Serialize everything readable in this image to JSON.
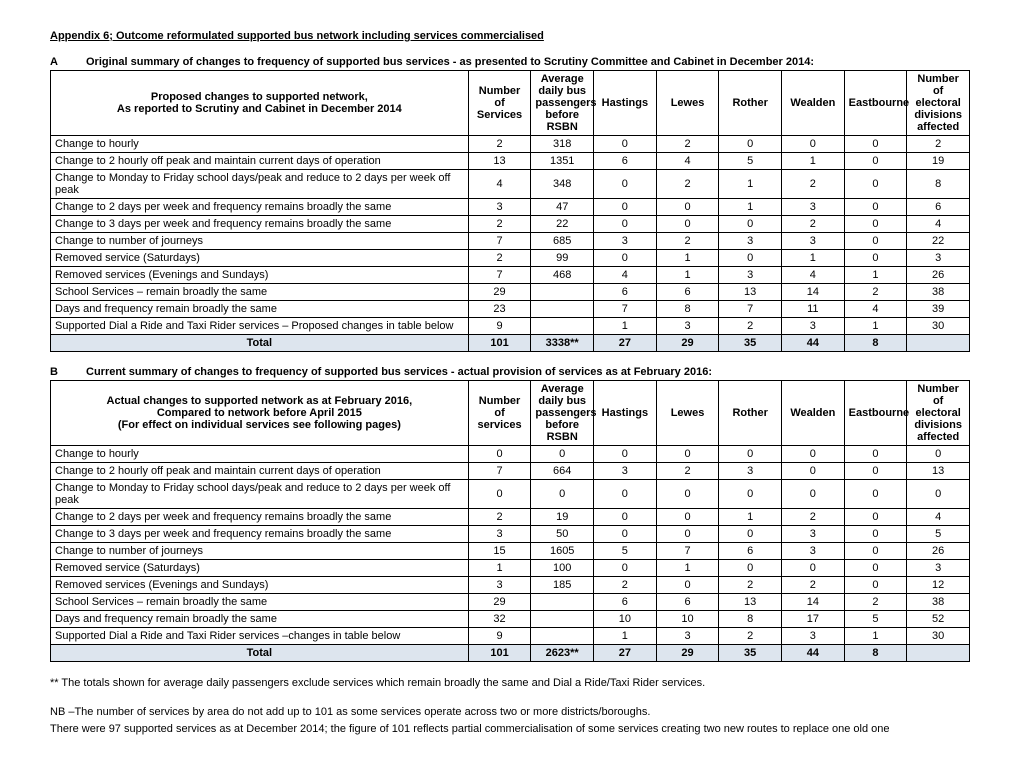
{
  "title": "Appendix 6; Outcome reformulated supported bus network including services commercialised",
  "footnote_star": "** The totals shown for average daily passengers exclude services which remain broadly the same and Dial a Ride/Taxi Rider services.",
  "footnote_nb1": "NB –The number of services by area do not add up to 101 as some services operate across two or more districts/boroughs.",
  "footnote_nb2": "There were 97 supported services as at December 2014; the figure of 101 reflects partial commercialisation of some services creating two new routes to replace one old one",
  "tableA": {
    "letter": "A",
    "heading": "Original summary of changes to frequency of supported bus services -  as presented to Scrutiny Committee and Cabinet in December 2014:",
    "header_desc_line1": "Proposed changes to supported network,",
    "header_desc_line2": "As reported to Scrutiny and Cabinet in December 2014",
    "header_services": "Number of Services",
    "header_pax": "Average daily bus passengers before RSBN",
    "header_hastings": "Hastings",
    "header_lewes": "Lewes",
    "header_rother": "Rother",
    "header_wealden": "Wealden",
    "header_eastbourne": "Eastbourne",
    "header_divisions": "Number of electoral divisions affected",
    "rows": [
      {
        "label": "Change to hourly",
        "services": "2",
        "pax": "318",
        "hastings": "0",
        "lewes": "2",
        "rother": "0",
        "wealden": "0",
        "eastbourne": "0",
        "divisions": "2"
      },
      {
        "label": "Change to 2 hourly off peak and maintain current days of operation",
        "services": "13",
        "pax": "1351",
        "hastings": "6",
        "lewes": "4",
        "rother": "5",
        "wealden": "1",
        "eastbourne": "0",
        "divisions": "19"
      },
      {
        "label": "Change to Monday to Friday school days/peak and reduce to 2 days per week off peak",
        "services": "4",
        "pax": "348",
        "hastings": "0",
        "lewes": "2",
        "rother": "1",
        "wealden": "2",
        "eastbourne": "0",
        "divisions": "8"
      },
      {
        "label": "Change to 2 days per week and frequency remains broadly the same",
        "services": "3",
        "pax": "47",
        "hastings": "0",
        "lewes": "0",
        "rother": "1",
        "wealden": "3",
        "eastbourne": "0",
        "divisions": "6"
      },
      {
        "label": "Change to 3 days per week and frequency remains broadly the same",
        "services": "2",
        "pax": "22",
        "hastings": "0",
        "lewes": "0",
        "rother": "0",
        "wealden": "2",
        "eastbourne": "0",
        "divisions": "4"
      },
      {
        "label": "Change to number of journeys",
        "services": "7",
        "pax": "685",
        "hastings": "3",
        "lewes": "2",
        "rother": "3",
        "wealden": "3",
        "eastbourne": "0",
        "divisions": "22"
      },
      {
        "label": "Removed service (Saturdays)",
        "services": "2",
        "pax": "99",
        "hastings": "0",
        "lewes": "1",
        "rother": "0",
        "wealden": "1",
        "eastbourne": "0",
        "divisions": "3"
      },
      {
        "label": "Removed services (Evenings and Sundays)",
        "services": "7",
        "pax": "468",
        "hastings": "4",
        "lewes": "1",
        "rother": "3",
        "wealden": "4",
        "eastbourne": "1",
        "divisions": "26"
      },
      {
        "label": "School Services – remain broadly the same",
        "services": "29",
        "pax": "",
        "hastings": "6",
        "lewes": "6",
        "rother": "13",
        "wealden": "14",
        "eastbourne": "2",
        "divisions": "38"
      },
      {
        "label": "Days and frequency remain broadly the same",
        "services": "23",
        "pax": "",
        "hastings": "7",
        "lewes": "8",
        "rother": "7",
        "wealden": "11",
        "eastbourne": "4",
        "divisions": "39"
      },
      {
        "label": "Supported Dial a Ride and Taxi Rider services – Proposed changes in table below",
        "services": "9",
        "pax": "",
        "hastings": "1",
        "lewes": "3",
        "rother": "2",
        "wealden": "3",
        "eastbourne": "1",
        "divisions": "30"
      }
    ],
    "total": {
      "label": "Total",
      "services": "101",
      "pax": "3338**",
      "hastings": "27",
      "lewes": "29",
      "rother": "35",
      "wealden": "44",
      "eastbourne": "8",
      "divisions": ""
    }
  },
  "tableB": {
    "letter": "B",
    "heading": "Current summary of changes to frequency of supported bus services -  actual provision of services as at February  2016:",
    "header_desc_line1": "Actual changes to supported network as at February 2016,",
    "header_desc_line2": "Compared to network before April 2015",
    "header_desc_line3": "(For effect on individual services see following pages)",
    "header_services": "Number of services",
    "header_pax": "Average daily bus passengers before RSBN",
    "header_hastings": "Hastings",
    "header_lewes": "Lewes",
    "header_rother": "Rother",
    "header_wealden": "Wealden",
    "header_eastbourne": "Eastbourne",
    "header_divisions": "Number of electoral divisions affected",
    "rows": [
      {
        "label": "Change to hourly",
        "services": "0",
        "pax": "0",
        "hastings": "0",
        "lewes": "0",
        "rother": "0",
        "wealden": "0",
        "eastbourne": "0",
        "divisions": "0"
      },
      {
        "label": "Change to 2 hourly off peak and maintain current days of operation",
        "services": "7",
        "pax": "664",
        "hastings": "3",
        "lewes": "2",
        "rother": "3",
        "wealden": "0",
        "eastbourne": "0",
        "divisions": "13"
      },
      {
        "label": "Change to Monday to Friday school days/peak and reduce to 2 days per week off peak",
        "services": "0",
        "pax": "0",
        "hastings": "0",
        "lewes": "0",
        "rother": "0",
        "wealden": "0",
        "eastbourne": "0",
        "divisions": "0"
      },
      {
        "label": "Change to 2 days per week and frequency remains broadly the same",
        "services": "2",
        "pax": "19",
        "hastings": "0",
        "lewes": "0",
        "rother": "1",
        "wealden": "2",
        "eastbourne": "0",
        "divisions": "4"
      },
      {
        "label": "Change to 3 days per week and frequency remains broadly the same",
        "services": "3",
        "pax": "50",
        "hastings": "0",
        "lewes": "0",
        "rother": "0",
        "wealden": "3",
        "eastbourne": "0",
        "divisions": "5"
      },
      {
        "label": "Change to number of journeys",
        "services": "15",
        "pax": "1605",
        "hastings": "5",
        "lewes": "7",
        "rother": "6",
        "wealden": "3",
        "eastbourne": "0",
        "divisions": "26"
      },
      {
        "label": "Removed service (Saturdays)",
        "services": "1",
        "pax": "100",
        "hastings": "0",
        "lewes": "1",
        "rother": "0",
        "wealden": "0",
        "eastbourne": "0",
        "divisions": "3"
      },
      {
        "label": "Removed services (Evenings and Sundays)",
        "services": "3",
        "pax": "185",
        "hastings": "2",
        "lewes": "0",
        "rother": "2",
        "wealden": "2",
        "eastbourne": "0",
        "divisions": "12"
      },
      {
        "label": "School Services – remain broadly the same",
        "services": "29",
        "pax": "",
        "hastings": "6",
        "lewes": "6",
        "rother": "13",
        "wealden": "14",
        "eastbourne": "2",
        "divisions": "38"
      },
      {
        "label": "Days and frequency remain broadly the same",
        "services": "32",
        "pax": "",
        "hastings": "10",
        "lewes": "10",
        "rother": "8",
        "wealden": "17",
        "eastbourne": "5",
        "divisions": "52"
      },
      {
        "label": "Supported Dial a Ride and Taxi Rider services –changes in table below",
        "services": "9",
        "pax": "",
        "hastings": "1",
        "lewes": "3",
        "rother": "2",
        "wealden": "3",
        "eastbourne": "1",
        "divisions": "30"
      }
    ],
    "total": {
      "label": "Total",
      "services": "101",
      "pax": "2623**",
      "hastings": "27",
      "lewes": "29",
      "rother": "35",
      "wealden": "44",
      "eastbourne": "8",
      "divisions": ""
    }
  }
}
